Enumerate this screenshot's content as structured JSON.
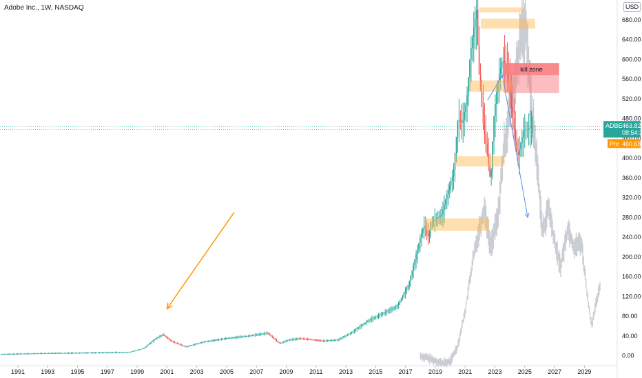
{
  "header": {
    "title": "Adobe Inc., 1W, NASDAQ"
  },
  "axis": {
    "unit_label": "USD"
  },
  "chart_data": {
    "type": "candlestick",
    "symbol": "ADBE",
    "interval": "1W",
    "exchange": "NASDAQ",
    "x_ticks": [
      "1991",
      "1993",
      "1995",
      "1997",
      "1999",
      "2001",
      "2003",
      "2005",
      "2007",
      "2009",
      "2011",
      "2013",
      "2015",
      "2017",
      "2019",
      "2021",
      "2023",
      "2025",
      "2027",
      "2029"
    ],
    "y_ticks": [
      "0.00",
      "40.00",
      "80.00",
      "120.00",
      "160.00",
      "200.00",
      "240.00",
      "280.00",
      "320.00",
      "360.00",
      "400.00",
      "440.00",
      "480.00",
      "520.00",
      "560.00",
      "600.00",
      "640.00",
      "680.00",
      "720.00"
    ],
    "ylim": [
      -20,
      720
    ],
    "xlim": [
      1989.8,
      2031.2
    ],
    "price_series": [
      [
        1989.9,
        3
      ],
      [
        1993,
        5
      ],
      [
        1996,
        6
      ],
      [
        1998.5,
        7
      ],
      [
        1999.5,
        15
      ],
      [
        2000.3,
        35
      ],
      [
        2000.8,
        43
      ],
      [
        2001.3,
        30
      ],
      [
        2002.3,
        18
      ],
      [
        2003.5,
        28
      ],
      [
        2005,
        35
      ],
      [
        2006.5,
        40
      ],
      [
        2007.8,
        46
      ],
      [
        2008.6,
        25
      ],
      [
        2009.2,
        32
      ],
      [
        2010,
        35
      ],
      [
        2011.5,
        30
      ],
      [
        2012.5,
        32
      ],
      [
        2013.5,
        48
      ],
      [
        2014.5,
        70
      ],
      [
        2015.5,
        85
      ],
      [
        2016.5,
        100
      ],
      [
        2017.3,
        145
      ],
      [
        2018,
        230
      ],
      [
        2018.3,
        265
      ],
      [
        2018.6,
        240
      ],
      [
        2018.8,
        270
      ],
      [
        2019.5,
        285
      ],
      [
        2019.9,
        330
      ],
      [
        2020.3,
        370
      ],
      [
        2020.6,
        480
      ],
      [
        2020.9,
        470
      ],
      [
        2021.2,
        520
      ],
      [
        2021.4,
        600
      ],
      [
        2021.6,
        650
      ],
      [
        2021.85,
        700
      ],
      [
        2022.0,
        580
      ],
      [
        2022.3,
        470
      ],
      [
        2022.6,
        400
      ],
      [
        2022.8,
        350
      ],
      [
        2023.0,
        480
      ],
      [
        2023.3,
        560
      ],
      [
        2023.6,
        600
      ],
      [
        2023.9,
        580
      ],
      [
        2024.2,
        500
      ],
      [
        2024.6,
        400
      ],
      [
        2025.0,
        455
      ],
      [
        2025.4,
        460
      ],
      [
        2025.6,
        464
      ]
    ],
    "projection_series": [
      [
        2018.0,
        0
      ],
      [
        2019.5,
        -15
      ],
      [
        2020.0,
        -12
      ],
      [
        2020.5,
        20
      ],
      [
        2021.0,
        90
      ],
      [
        2021.5,
        190
      ],
      [
        2021.9,
        250
      ],
      [
        2022.3,
        300
      ],
      [
        2022.7,
        220
      ],
      [
        2023.2,
        280
      ],
      [
        2023.6,
        420
      ],
      [
        2024.0,
        500
      ],
      [
        2024.4,
        560
      ],
      [
        2024.8,
        660
      ],
      [
        2025.1,
        670
      ],
      [
        2025.4,
        520
      ],
      [
        2025.8,
        400
      ],
      [
        2026.2,
        250
      ],
      [
        2026.6,
        300
      ],
      [
        2027.0,
        230
      ],
      [
        2027.4,
        180
      ],
      [
        2027.9,
        260
      ],
      [
        2028.3,
        220
      ],
      [
        2028.8,
        230
      ],
      [
        2029.2,
        120
      ],
      [
        2029.5,
        60
      ],
      [
        2029.8,
        110
      ],
      [
        2030.1,
        150
      ]
    ],
    "zones": [
      {
        "x0": 2021.95,
        "x1": 2024.95,
        "y0": 695,
        "y1": 705
      },
      {
        "x0": 2022.05,
        "x1": 2025.7,
        "y0": 662,
        "y1": 682
      },
      {
        "x0": 2021.3,
        "x1": 2024.2,
        "y0": 534,
        "y1": 557
      },
      {
        "x0": 2020.3,
        "x1": 2023.6,
        "y0": 383,
        "y1": 404
      },
      {
        "x0": 2018.3,
        "x1": 2022.6,
        "y0": 253,
        "y1": 278
      }
    ],
    "kill_zone": {
      "label": "kill zone",
      "x0": 2023.6,
      "x1": 2027.3,
      "y0": 532,
      "y1": 592
    },
    "arrows": [
      {
        "color": "#ff9800",
        "from": [
          2005.5,
          290
        ],
        "to": [
          2001.0,
          95
        ]
      },
      {
        "color": "#5b8def",
        "from": [
          2022.5,
          517
        ],
        "to": [
          2023.5,
          568
        ],
        "to2": [
          2025.2,
          280
        ]
      }
    ],
    "last_price": {
      "symbol": "ADBE",
      "price": "463.82",
      "countdown": "08:54:38",
      "value": 463.82
    },
    "pre_market": {
      "label": "Pre",
      "price": "460.68",
      "value": 460.68
    }
  }
}
